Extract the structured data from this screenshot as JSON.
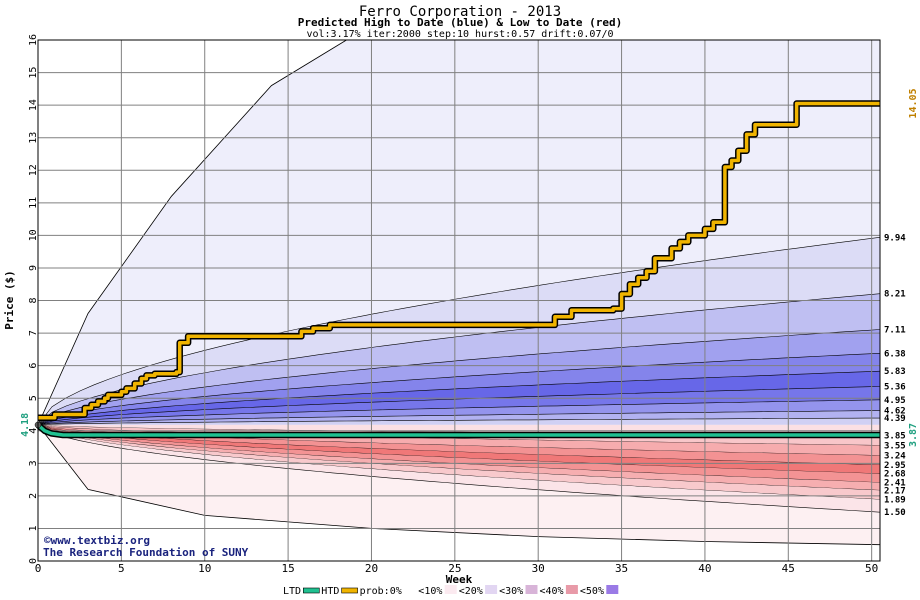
{
  "chart_data": {
    "type": "area",
    "title": "Ferro Corporation - 2013",
    "subtitle": "Predicted High to Date (blue) &  Low to Date (red)",
    "params": "vol:3.17% iter:2000 step:10 hurst:0.57 drift:0.07/0",
    "xlabel": "Week",
    "ylabel": "Price ($)",
    "xlim": [
      0,
      50.5
    ],
    "ylim": [
      0,
      16
    ],
    "x_ticks": [
      0,
      5,
      10,
      15,
      20,
      25,
      30,
      35,
      40,
      45,
      50
    ],
    "y_ticks": [
      0,
      1,
      2,
      3,
      4,
      5,
      6,
      7,
      8,
      9,
      10,
      11,
      12,
      13,
      14,
      15,
      16
    ],
    "grid": true,
    "start_price": 4.18,
    "start_label": "4.18",
    "high_bands": [
      {
        "end": 9.94,
        "label": "9.94"
      },
      {
        "end": 8.21,
        "label": "8.21"
      },
      {
        "end": 7.11,
        "label": "7.11"
      },
      {
        "end": 6.38,
        "label": "6.38"
      },
      {
        "end": 5.83,
        "label": "5.83"
      },
      {
        "end": 5.36,
        "label": "5.36"
      },
      {
        "end": 4.95,
        "label": "4.95"
      },
      {
        "end": 4.62,
        "label": "4.62"
      },
      {
        "end": 4.39,
        "label": "4.39"
      }
    ],
    "low_bands": [
      {
        "end": 3.85,
        "label": "3.85"
      },
      {
        "end": 3.55,
        "label": "3.55"
      },
      {
        "end": 3.24,
        "label": "3.24"
      },
      {
        "end": 2.95,
        "label": "2.95"
      },
      {
        "end": 2.68,
        "label": "2.68"
      },
      {
        "end": 2.41,
        "label": "2.41"
      },
      {
        "end": 2.17,
        "label": "2.17"
      },
      {
        "end": 1.89,
        "label": "1.89"
      },
      {
        "end": 1.5,
        "label": "1.50"
      }
    ],
    "outer_high_envelope": [
      [
        0,
        4.18
      ],
      [
        3,
        7.6
      ],
      [
        8,
        11.2
      ],
      [
        14,
        14.6
      ],
      [
        18.5,
        16
      ]
    ],
    "outer_low_envelope": [
      [
        0,
        4.18
      ],
      [
        3,
        2.2
      ],
      [
        10,
        1.4
      ],
      [
        20,
        1.0
      ],
      [
        30,
        0.75
      ],
      [
        40,
        0.6
      ],
      [
        50.5,
        0.5
      ]
    ],
    "series": [
      {
        "name": "HTD",
        "color": "#f0b400",
        "x": [
          0,
          1,
          2.3,
          2.8,
          3.2,
          3.6,
          4,
          4.2,
          5,
          5.3,
          5.8,
          6.2,
          6.5,
          7,
          8.3,
          8.5,
          9,
          15.5,
          15.8,
          16.5,
          17.5,
          30.5,
          31,
          32,
          34.5,
          35,
          35.5,
          36,
          36.5,
          37,
          38,
          38.5,
          39,
          40,
          40.5,
          41.2,
          41.6,
          42,
          42.5,
          43,
          44,
          45,
          45.5,
          50.5
        ],
        "y": [
          4.4,
          4.5,
          4.5,
          4.7,
          4.8,
          4.9,
          5.0,
          5.1,
          5.2,
          5.3,
          5.45,
          5.6,
          5.7,
          5.75,
          5.8,
          6.7,
          6.9,
          6.9,
          7.05,
          7.15,
          7.25,
          7.25,
          7.5,
          7.7,
          7.75,
          8.2,
          8.5,
          8.7,
          8.9,
          9.3,
          9.6,
          9.8,
          10.0,
          10.2,
          10.4,
          12.1,
          12.3,
          12.6,
          13.1,
          13.4,
          13.4,
          13.4,
          14.05,
          14.05
        ]
      },
      {
        "name": "LTD",
        "color": "#20c090",
        "x": [
          0,
          0.4,
          0.8,
          1.5,
          50.5
        ],
        "y": [
          4.18,
          4.0,
          3.92,
          3.87,
          3.87
        ]
      }
    ],
    "end_labels": [
      {
        "text": "14.05",
        "color": "#c08000",
        "value": 14.05
      },
      {
        "text": "3.87",
        "color": "#20a080",
        "value": 3.87
      }
    ],
    "credits": [
      "©www.textbiz.org",
      "The Research Foundation of SUNY"
    ],
    "legend": [
      {
        "label": "LTD",
        "kind": "swatch-line",
        "color": "#20c090"
      },
      {
        "label": "HTD",
        "kind": "swatch-line",
        "color": "#f0b400"
      },
      {
        "label": "prob:0%",
        "kind": "swatch",
        "color": "#ffffff"
      },
      {
        "label": "<10%",
        "kind": "swatch",
        "color": "#fbeaf0"
      },
      {
        "label": "<20%",
        "kind": "swatch",
        "color": "#e2d6f2"
      },
      {
        "label": "<30%",
        "kind": "swatch",
        "color": "#d8b4d8"
      },
      {
        "label": "<40%",
        "kind": "swatch",
        "color": "#e89aa8"
      },
      {
        "label": "<50%",
        "kind": "swatch",
        "color": "#9a7ae6"
      }
    ],
    "legend_position": "bottom"
  }
}
